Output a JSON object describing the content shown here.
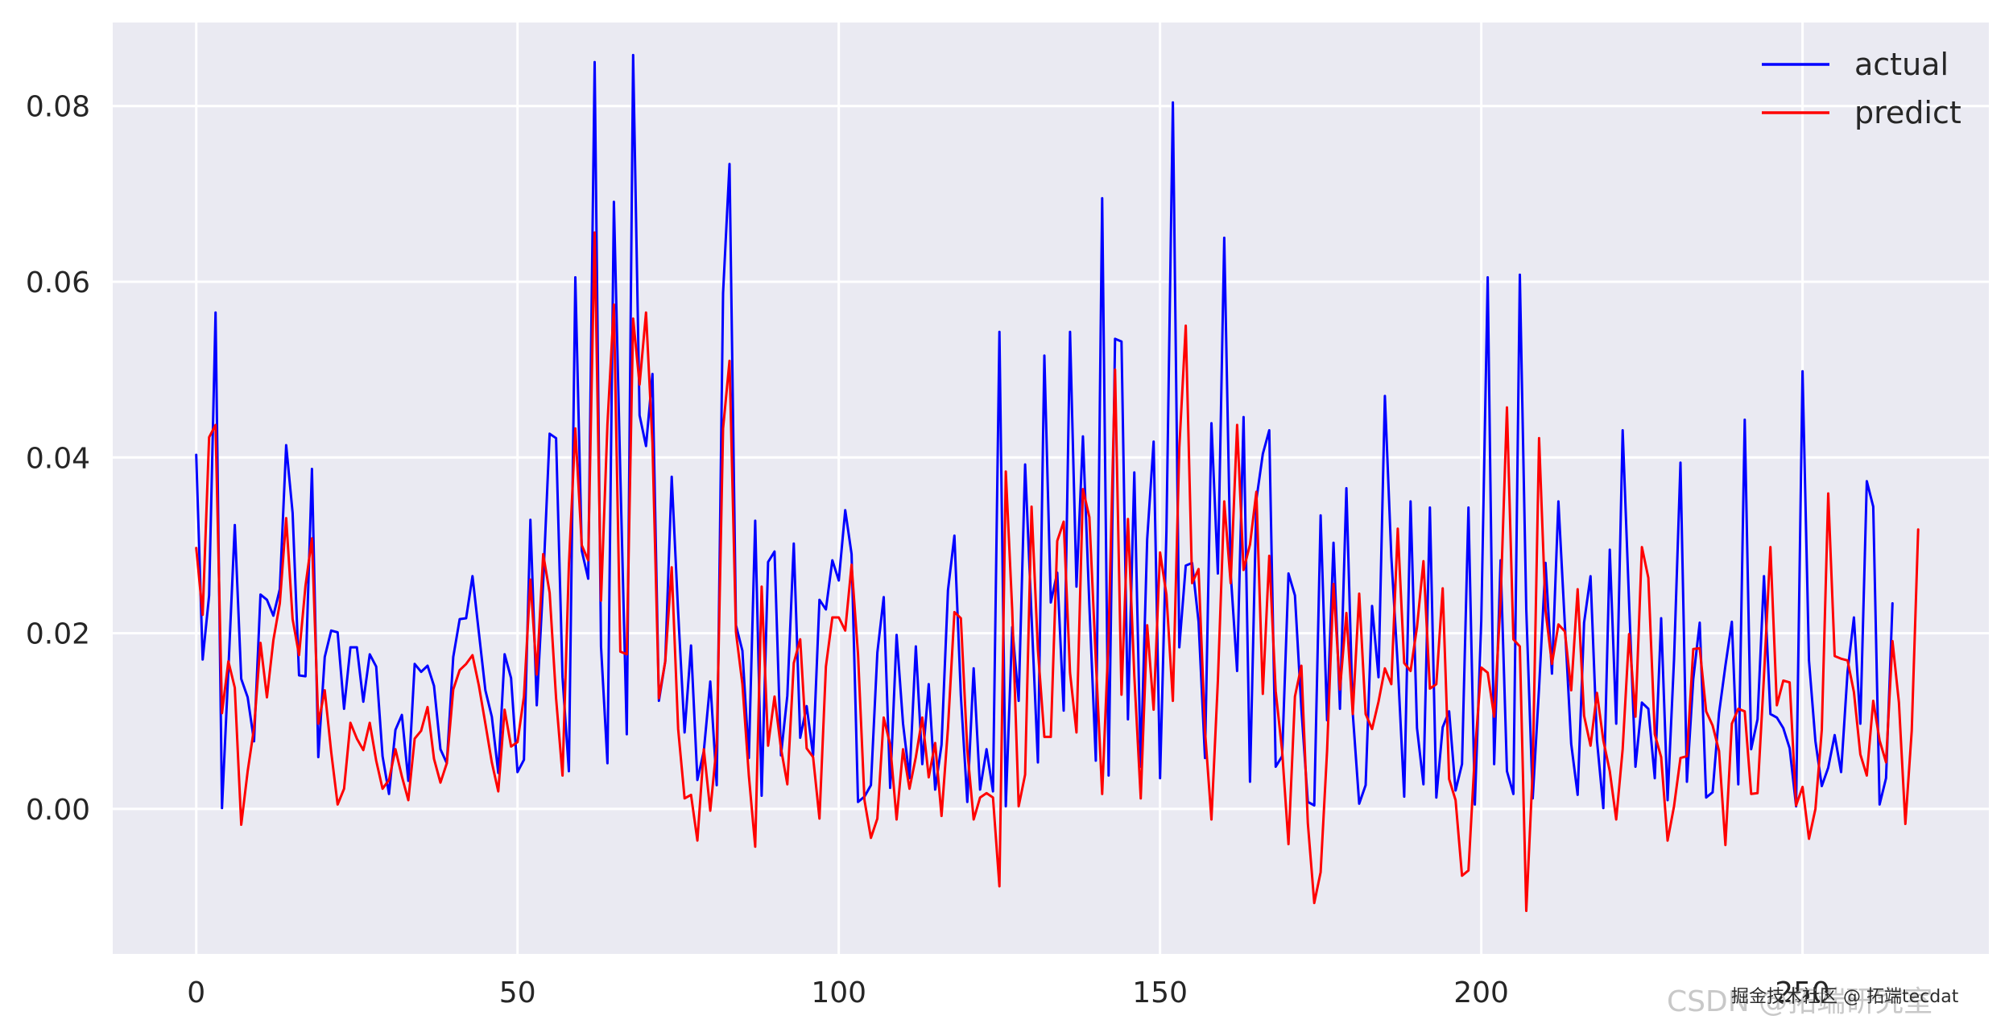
{
  "chart_data": {
    "type": "line",
    "title": "",
    "xlabel": "",
    "ylabel": "",
    "xlim": [
      -13,
      279
    ],
    "ylim": [
      -0.0165,
      0.0895
    ],
    "xticks": [
      0,
      50,
      100,
      150,
      200,
      250
    ],
    "yticks": [
      0.0,
      0.02,
      0.04,
      0.06,
      0.08
    ],
    "ytick_labels": [
      "0.00",
      "0.02",
      "0.04",
      "0.06",
      "0.08"
    ],
    "grid": true,
    "background": "#eaeaf2",
    "legend_position": "top-right",
    "series": [
      {
        "name": "actual",
        "color": "#0000ff",
        "values": [
          0.0403,
          0.017,
          0.0243,
          0.0565,
          0.0001,
          0.0158,
          0.0323,
          0.0148,
          0.0127,
          0.0077,
          0.0244,
          0.0238,
          0.022,
          0.025,
          0.0414,
          0.0337,
          0.0152,
          0.0151,
          0.0387,
          0.0059,
          0.0173,
          0.0203,
          0.0201,
          0.0114,
          0.0184,
          0.0184,
          0.0122,
          0.0176,
          0.0162,
          0.006,
          0.0017,
          0.009,
          0.0107,
          0.0032,
          0.0165,
          0.0156,
          0.0163,
          0.014,
          0.0068,
          0.0052,
          0.0173,
          0.0216,
          0.0217,
          0.0265,
          0.02,
          0.0135,
          0.0105,
          0.0041,
          0.0176,
          0.0149,
          0.0042,
          0.0056,
          0.0329,
          0.0118,
          0.0258,
          0.0427,
          0.0422,
          0.015,
          0.0043,
          0.0605,
          0.0294,
          0.0262,
          0.085,
          0.0185,
          0.0052,
          0.0691,
          0.038,
          0.0085,
          0.0858,
          0.0448,
          0.0413,
          0.0495,
          0.0123,
          0.0168,
          0.0378,
          0.0224,
          0.0087,
          0.0186,
          0.0033,
          0.0066,
          0.0145,
          0.0027,
          0.0587,
          0.0734,
          0.0209,
          0.018,
          0.0058,
          0.0328,
          0.0015,
          0.0281,
          0.0293,
          0.0061,
          0.0129,
          0.0302,
          0.0081,
          0.0117,
          0.0061,
          0.0238,
          0.0227,
          0.0283,
          0.026,
          0.034,
          0.029,
          0.0008,
          0.0014,
          0.0027,
          0.0178,
          0.0241,
          0.0024,
          0.0198,
          0.0097,
          0.0035,
          0.0185,
          0.0051,
          0.0142,
          0.0022,
          0.0073,
          0.0249,
          0.0311,
          0.0129,
          0.0008,
          0.016,
          0.0022,
          0.0068,
          0.002,
          0.0543,
          0.0003,
          0.0207,
          0.0123,
          0.0392,
          0.0219,
          0.0053,
          0.0516,
          0.0235,
          0.0269,
          0.0112,
          0.0543,
          0.0253,
          0.0424,
          0.0232,
          0.0055,
          0.0695,
          0.0038,
          0.0535,
          0.0532,
          0.0102,
          0.0383,
          0.0048,
          0.0307,
          0.0418,
          0.0035,
          0.0316,
          0.0804,
          0.0184,
          0.0277,
          0.028,
          0.0213,
          0.0058,
          0.0439,
          0.0268,
          0.065,
          0.0268,
          0.0157,
          0.0446,
          0.0031,
          0.0352,
          0.0404,
          0.0431,
          0.0048,
          0.006,
          0.0268,
          0.0243,
          0.0114,
          0.0008,
          0.0004,
          0.0334,
          0.0101,
          0.0303,
          0.0114,
          0.0365,
          0.0109,
          0.0006,
          0.0027,
          0.0231,
          0.015,
          0.047,
          0.0287,
          0.0163,
          0.0014,
          0.035,
          0.0092,
          0.0028,
          0.0343,
          0.0013,
          0.0093,
          0.0111,
          0.0021,
          0.0051,
          0.0343,
          0.0005,
          0.0214,
          0.0605,
          0.0051,
          0.0283,
          0.0043,
          0.0017,
          0.0608,
          0.0227,
          0.0012,
          0.0138,
          0.028,
          0.0154,
          0.035,
          0.021,
          0.0074,
          0.0016,
          0.0212,
          0.0265,
          0.0078,
          0.0001,
          0.0295,
          0.0097,
          0.0431,
          0.0235,
          0.0048,
          0.0121,
          0.0114,
          0.0035,
          0.0217,
          0.001,
          0.017,
          0.0394,
          0.0031,
          0.0148,
          0.0212,
          0.0013,
          0.0019,
          0.0109,
          0.0163,
          0.0213,
          0.0028,
          0.0443,
          0.0068,
          0.0102,
          0.0265,
          0.0108,
          0.0104,
          0.0092,
          0.0069,
          0.0003,
          0.0498,
          0.0169,
          0.0077,
          0.0026,
          0.0047,
          0.0084,
          0.0042,
          0.0156,
          0.0218,
          0.0097,
          0.0373,
          0.0344,
          0.0005,
          0.0035,
          0.0234
        ]
      },
      {
        "name": "predict",
        "color": "#ff0000",
        "values": [
          0.0297,
          0.0221,
          0.0423,
          0.0437,
          0.0109,
          0.0168,
          0.0138,
          -0.0018,
          0.0043,
          0.0092,
          0.0189,
          0.0127,
          0.0192,
          0.0234,
          0.0331,
          0.0216,
          0.0175,
          0.0254,
          0.0308,
          0.0097,
          0.0135,
          0.0065,
          0.0005,
          0.0023,
          0.0098,
          0.008,
          0.0067,
          0.0098,
          0.0055,
          0.0023,
          0.0033,
          0.0068,
          0.0037,
          0.001,
          0.008,
          0.0089,
          0.0116,
          0.0057,
          0.003,
          0.0052,
          0.0136,
          0.0158,
          0.0165,
          0.0175,
          0.014,
          0.0097,
          0.0053,
          0.002,
          0.0113,
          0.0071,
          0.0076,
          0.0128,
          0.0261,
          0.0153,
          0.029,
          0.0246,
          0.0126,
          0.0038,
          0.0277,
          0.0433,
          0.03,
          0.0283,
          0.0656,
          0.0237,
          0.0438,
          0.0574,
          0.0179,
          0.0176,
          0.0558,
          0.0483,
          0.0565,
          0.0416,
          0.0126,
          0.0168,
          0.0275,
          0.0091,
          0.0012,
          0.0016,
          -0.0036,
          0.0068,
          -0.0002,
          0.0073,
          0.0433,
          0.051,
          0.0201,
          0.0142,
          0.0038,
          -0.0043,
          0.0253,
          0.0072,
          0.0128,
          0.0069,
          0.0028,
          0.0166,
          0.0193,
          0.0069,
          0.0059,
          -0.0011,
          0.0162,
          0.0218,
          0.0218,
          0.0203,
          0.0278,
          0.0176,
          0.001,
          -0.0033,
          -0.0011,
          0.0104,
          0.0073,
          -0.0012,
          0.0068,
          0.0023,
          0.0059,
          0.0104,
          0.0036,
          0.0075,
          -0.0008,
          0.0092,
          0.0224,
          0.0217,
          0.0067,
          -0.0012,
          0.0013,
          0.0018,
          0.0013,
          -0.0088,
          0.0384,
          0.0226,
          0.0003,
          0.0039,
          0.0344,
          0.0181,
          0.0082,
          0.0082,
          0.0305,
          0.0327,
          0.0155,
          0.0087,
          0.0364,
          0.0332,
          0.017,
          0.0017,
          0.0197,
          0.05,
          0.013,
          0.033,
          0.0152,
          0.0012,
          0.0209,
          0.0113,
          0.0292,
          0.0244,
          0.0123,
          0.0411,
          0.055,
          0.0257,
          0.0273,
          0.0089,
          -0.0012,
          0.0146,
          0.035,
          0.0257,
          0.0437,
          0.0272,
          0.0301,
          0.0361,
          0.0131,
          0.0288,
          0.0134,
          0.0066,
          -0.004,
          0.0128,
          0.0163,
          -0.0016,
          -0.0107,
          -0.0072,
          0.0066,
          0.0256,
          0.0136,
          0.0223,
          0.0108,
          0.0245,
          0.0108,
          0.0091,
          0.0122,
          0.016,
          0.0142,
          0.0319,
          0.0166,
          0.0157,
          0.0207,
          0.0282,
          0.0137,
          0.0142,
          0.0251,
          0.0034,
          0.001,
          -0.0076,
          -0.007,
          0.0062,
          0.0161,
          0.0155,
          0.0105,
          0.0237,
          0.0457,
          0.0193,
          0.0185,
          -0.0116,
          0.0044,
          0.0422,
          0.0226,
          0.0165,
          0.021,
          0.0202,
          0.0135,
          0.025,
          0.0106,
          0.0072,
          0.0132,
          0.0078,
          0.0043,
          -0.0012,
          0.0068,
          0.0199,
          0.0105,
          0.0298,
          0.0263,
          0.0085,
          0.0059,
          -0.0036,
          0.0003,
          0.0058,
          0.006,
          0.0182,
          0.0183,
          0.0111,
          0.0095,
          0.0066,
          -0.0041,
          0.0097,
          0.0114,
          0.0111,
          0.0017,
          0.0018,
          0.0151,
          0.0298,
          0.0118,
          0.0146,
          0.0144,
          0.0004,
          0.0025,
          -0.0034,
          0.0,
          0.009,
          0.0359,
          0.0174,
          0.0171,
          0.0169,
          0.0133,
          0.0062,
          0.0038,
          0.0123,
          0.0078,
          0.0053,
          0.0191,
          0.0121,
          -0.0017,
          0.0089,
          0.0318
        ]
      }
    ]
  },
  "watermark": {
    "text1": "CSDN @拓端研究室",
    "text2": "掘金技术社区 @ 拓端tecdat"
  }
}
